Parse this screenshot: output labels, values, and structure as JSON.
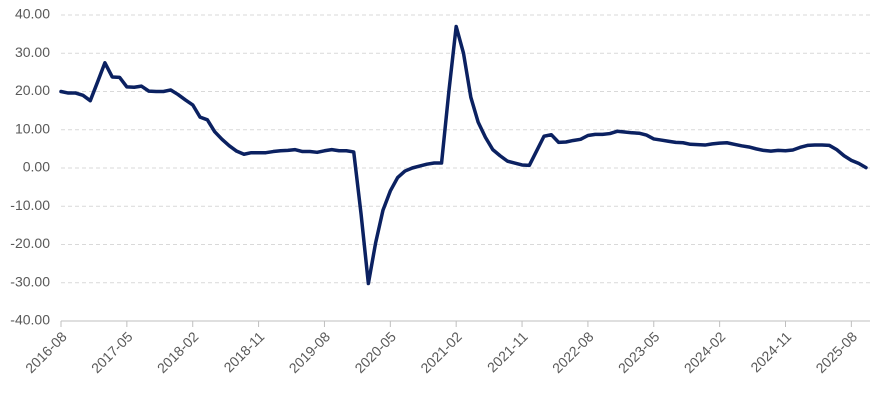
{
  "chart_data": {
    "type": "line",
    "categories": [
      "2016-08",
      null,
      null,
      null,
      null,
      null,
      null,
      null,
      null,
      "2017-05",
      null,
      null,
      null,
      null,
      null,
      null,
      null,
      null,
      "2018-02",
      null,
      null,
      null,
      null,
      null,
      null,
      null,
      null,
      "2018-11",
      null,
      null,
      null,
      null,
      null,
      null,
      null,
      null,
      "2019-08",
      null,
      null,
      null,
      null,
      null,
      null,
      null,
      null,
      "2020-05",
      null,
      null,
      null,
      null,
      null,
      null,
      null,
      null,
      "2021-02",
      null,
      null,
      null,
      null,
      null,
      null,
      null,
      null,
      "2021-11",
      null,
      null,
      null,
      null,
      null,
      null,
      null,
      null,
      "2022-08",
      null,
      null,
      null,
      null,
      null,
      null,
      null,
      null,
      "2023-05",
      null,
      null,
      null,
      null,
      null,
      null,
      null,
      null,
      "2024-02",
      null,
      null,
      null,
      null,
      null,
      null,
      null,
      null,
      "2024-11",
      null,
      null,
      null,
      null,
      null,
      null,
      null,
      null,
      "2025-08",
      null,
      null
    ],
    "series": [
      {
        "color": "#0b2161",
        "values": [
          20.0,
          19.6,
          19.6,
          19.0,
          17.6,
          22.5,
          27.5,
          23.8,
          23.7,
          21.2,
          21.1,
          21.4,
          20.1,
          20.0,
          20.0,
          20.4,
          19.2,
          17.8,
          16.5,
          13.3,
          12.6,
          9.5,
          7.5,
          5.8,
          4.4,
          3.6,
          4.0,
          4.0,
          4.0,
          4.3,
          4.5,
          4.6,
          4.8,
          4.3,
          4.3,
          4.1,
          4.5,
          4.8,
          4.5,
          4.5,
          4.2,
          -12,
          -30.2,
          -19.5,
          -11,
          -6,
          -2.5,
          -0.8,
          0,
          0.5,
          1.0,
          1.3,
          1.3,
          20,
          37,
          30,
          18.5,
          12,
          8,
          4.8,
          3.2,
          1.8,
          1.3,
          0.8,
          0.7,
          4.5,
          8.3,
          8.7,
          6.7,
          6.8,
          7.2,
          7.5,
          8.5,
          8.8,
          8.8,
          9.0,
          9.6,
          9.4,
          9.2,
          9.1,
          8.6,
          7.6,
          7.3,
          7.0,
          6.7,
          6.6,
          6.2,
          6.1,
          6.0,
          6.3,
          6.5,
          6.6,
          6.2,
          5.8,
          5.5,
          5.0,
          4.6,
          4.4,
          4.6,
          4.5,
          4.7,
          5.4,
          5.9,
          6.0,
          6.0,
          5.9,
          4.8,
          3.2,
          2.0,
          1.2,
          0.1
        ]
      }
    ],
    "ylim": [
      -40,
      40
    ],
    "yticks": [
      {
        "value": -40,
        "label": "-40.00"
      },
      {
        "value": -30,
        "label": "-30.00"
      },
      {
        "value": -20,
        "label": "-20.00"
      },
      {
        "value": -10,
        "label": "-10.00"
      },
      {
        "value": 0,
        "label": "0.00"
      },
      {
        "value": 10,
        "label": "10.00"
      },
      {
        "value": 20,
        "label": "20.00"
      },
      {
        "value": 30,
        "label": "30.00"
      },
      {
        "value": 40,
        "label": "40.00"
      }
    ],
    "grid": true
  }
}
